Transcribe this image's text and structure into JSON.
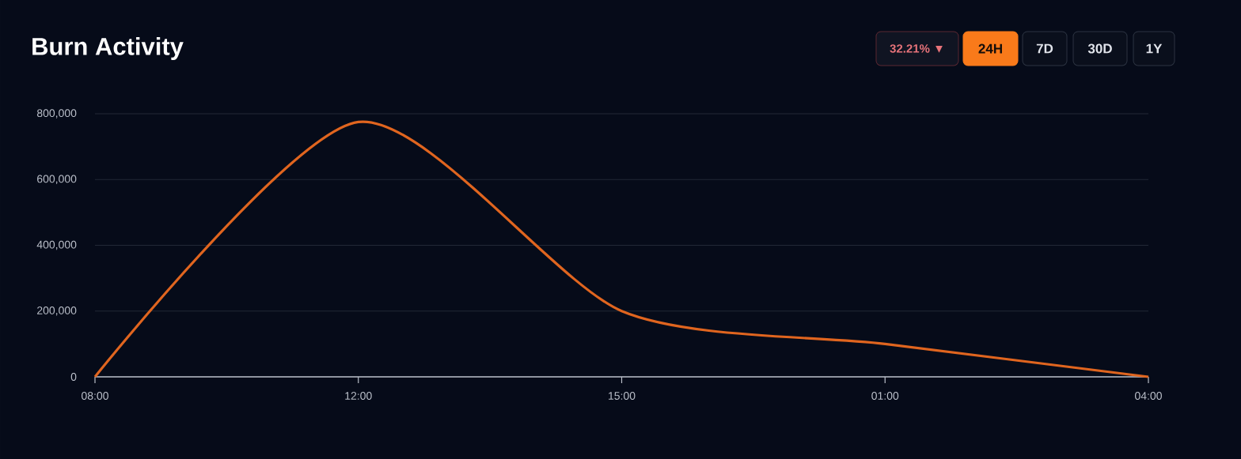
{
  "chart_data": {
    "type": "line",
    "title": "Burn Activity",
    "annotations": [
      "32.21% ▼",
      "24H",
      "7D",
      "30D",
      "1Y"
    ],
    "categories": [
      "08:00",
      "12:00",
      "15:00",
      "01:00",
      "04:00"
    ],
    "series": [
      {
        "color": "#e0651f",
        "values": [
          0,
          775000,
          200000,
          100000,
          0
        ]
      }
    ],
    "ylim": [
      0,
      800000
    ],
    "yticks": [
      {
        "value": 0,
        "label": "0"
      },
      {
        "value": 200000,
        "label": "200,000"
      },
      {
        "value": 400000,
        "label": "400,000"
      },
      {
        "value": 600000,
        "label": "600,000"
      },
      {
        "value": 800000,
        "label": "800,000"
      }
    ],
    "grid": "y"
  }
}
